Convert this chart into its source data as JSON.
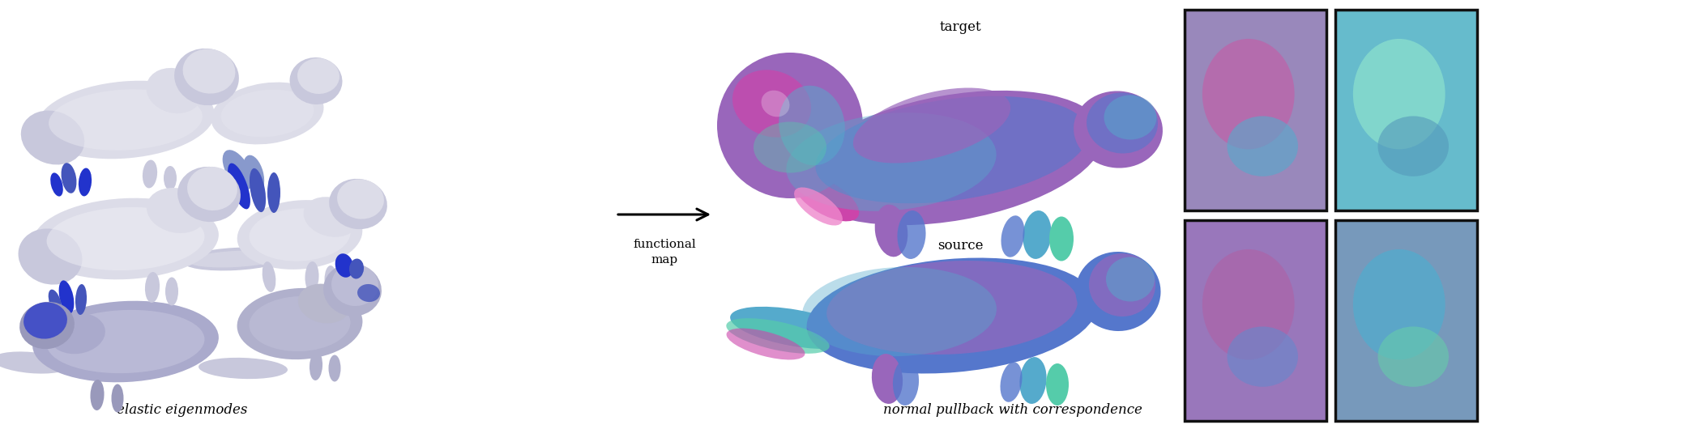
{
  "fig_width": 20.87,
  "fig_height": 5.3,
  "dpi": 100,
  "bg": "#ffffff",
  "body_light": "#dcdce8",
  "body_mid": "#c8c8dc",
  "body_dark": "#b0b0cc",
  "blue_bright": "#2233cc",
  "blue_mid": "#4455bb",
  "blue_light": "#8899cc",
  "label_elastic": "elastic eigenmodes",
  "label_normal": "normal pullback with correspondence",
  "label_functional": "functional\nmap",
  "label_target": "target",
  "label_source": "source",
  "font_size": 12,
  "font_size_small": 11
}
